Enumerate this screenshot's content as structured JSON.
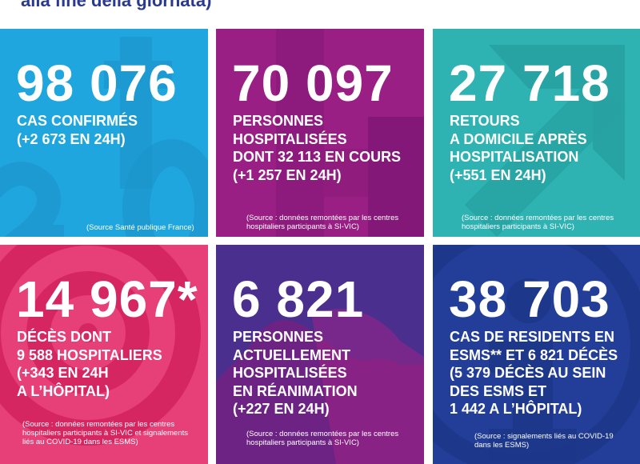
{
  "header": {
    "text": "alla fine della giornata)"
  },
  "tiles": {
    "cases": {
      "number": "98 076",
      "lines": [
        "CAS CONFIRMÉS",
        "(+2 673 EN 24H)"
      ],
      "source": [
        "(Source Santé publique France)"
      ],
      "color": "#20a6de"
    },
    "hospitalized": {
      "number": "70 097",
      "lines": [
        "PERSONNES",
        "HOSPITALISÉES",
        "DONT 32 113 EN COURS",
        "(+1 257 EN 24H)"
      ],
      "source": [
        "(Source : données remontées par les centres",
        "hospitaliers participants à SI-VIC)"
      ],
      "color": "#9a1f85"
    },
    "returns": {
      "number": "27 718",
      "lines": [
        "RETOURS",
        "A DOMICILE APRÈS",
        "HOSPITALISATION",
        "(+551 EN 24H)"
      ],
      "source": [
        "(Source : données remontées par les centres",
        "hospitaliers participants à SI-VIC)"
      ],
      "color": "#2eb2b2"
    },
    "deaths": {
      "number": "14 967*",
      "lines": [
        "DÉCÈS DONT",
        "9 588 HOSPITALIERS",
        "(+343 EN 24H",
        "A L’HÔPITAL)"
      ],
      "source": [
        "(Source : données remontées par les centres",
        "hospitaliers participants à SI-VIC et signalements",
        "liés au COVID-19 dans les ESMS)"
      ],
      "color": "#e73f78"
    },
    "icu": {
      "number": "6 821",
      "lines": [
        "PERSONNES",
        "ACTUELLEMENT",
        "HOSPITALISÉES",
        "EN RÉANIMATION",
        "(+227 EN 24H)"
      ],
      "source": [
        "(Source : données remontées par les centres",
        "hospitaliers participants à SI-VIC)"
      ],
      "color": "#4a2f8e"
    },
    "esms": {
      "number": "38 703",
      "lines": [
        "CAS DE RESIDENTS EN",
        "ESMS** ET 6 821 DÉCÈS",
        "(5 379 DÉCÈS AU SEIN",
        "DES ESMS ET",
        "1 442 A L’HÔPITAL)"
      ],
      "source": [
        "(Source : signalements liés au COVID-19",
        "dans les ESMS)"
      ],
      "color": "#223e98"
    }
  }
}
